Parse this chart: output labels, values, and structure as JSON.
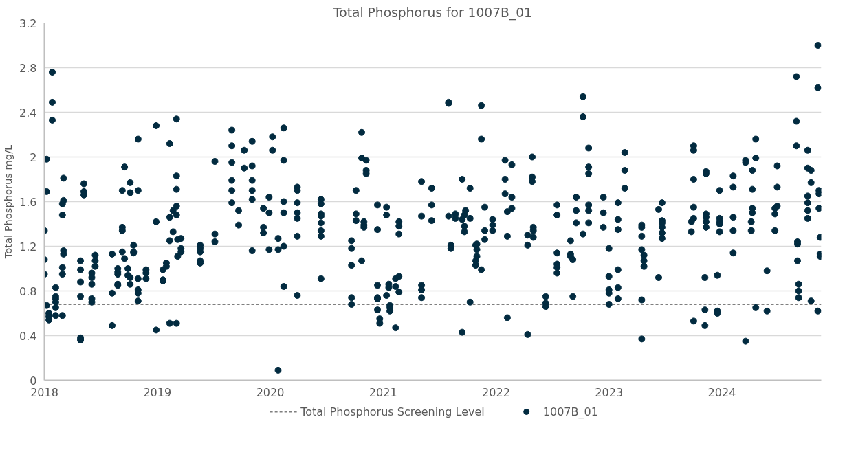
{
  "chart_data": {
    "type": "scatter",
    "title": "Total Phosphorus for 1007B_01",
    "ylabel": "Total Phosphorus mg/L",
    "xlim": [
      2018,
      2024.88
    ],
    "xticks": [
      2018,
      2019,
      2020,
      2021,
      2022,
      2023,
      2024
    ],
    "ylim": [
      0,
      3.2
    ],
    "yticks": [
      0,
      0.4,
      0.8,
      1.2,
      1.6,
      2,
      2.4,
      2.8,
      3.2
    ],
    "grid": "y",
    "legend": "bottom",
    "marker": "circle",
    "ref_lines": [
      {
        "axis": "y",
        "value": 0.68,
        "label": "Total Phosphorus Screening Level",
        "color": "#7f7f7f",
        "line_style": "dashed"
      }
    ],
    "series": [
      {
        "name": "1007B_01",
        "color": "#022b40",
        "x": [
          2018.0,
          2018.0,
          2018.0,
          2018.02,
          2018.02,
          2018.02,
          2018.04,
          2018.04,
          2018.04,
          2018.07,
          2018.07,
          2018.07,
          2018.1,
          2018.1,
          2018.1,
          2018.1,
          2018.1,
          2018.1,
          2018.16,
          2018.16,
          2018.16,
          2018.16,
          2018.16,
          2018.17,
          2018.17,
          2018.17,
          2018.17,
          2018.32,
          2018.32,
          2018.32,
          2018.32,
          2018.32,
          2018.32,
          2018.35,
          2018.35,
          2018.35,
          2018.42,
          2018.42,
          2018.42,
          2018.42,
          2018.42,
          2018.45,
          2018.45,
          2018.45,
          2018.6,
          2018.6,
          2018.6,
          2018.65,
          2018.65,
          2018.65,
          2018.65,
          2018.65,
          2018.69,
          2018.69,
          2018.69,
          2018.69,
          2018.71,
          2018.71,
          2018.74,
          2018.74,
          2018.76,
          2018.76,
          2018.76,
          2018.76,
          2018.79,
          2018.79,
          2018.79,
          2018.83,
          2018.83,
          2018.83,
          2018.83,
          2018.83,
          2018.83,
          2018.9,
          2018.9,
          2018.9,
          2018.99,
          2018.99,
          2018.99,
          2019.05,
          2019.05,
          2019.05,
          2019.08,
          2019.08,
          2019.11,
          2019.11,
          2019.11,
          2019.11,
          2019.14,
          2019.14,
          2019.17,
          2019.17,
          2019.17,
          2019.17,
          2019.17,
          2019.17,
          2019.18,
          2019.18,
          2019.21,
          2019.21,
          2019.21,
          2019.38,
          2019.38,
          2019.38,
          2019.38,
          2019.38,
          2019.51,
          2019.51,
          2019.51,
          2019.66,
          2019.66,
          2019.66,
          2019.66,
          2019.66,
          2019.66,
          2019.72,
          2019.72,
          2019.77,
          2019.77,
          2019.84,
          2019.84,
          2019.84,
          2019.84,
          2019.84,
          2019.84,
          2019.94,
          2019.94,
          2019.94,
          2019.99,
          2019.99,
          2019.99,
          2020.02,
          2020.02,
          2020.07,
          2020.07,
          2020.07,
          2020.12,
          2020.12,
          2020.12,
          2020.12,
          2020.12,
          2020.12,
          2020.24,
          2020.24,
          2020.24,
          2020.24,
          2020.24,
          2020.24,
          2020.24,
          2020.45,
          2020.45,
          2020.45,
          2020.45,
          2020.45,
          2020.45,
          2020.45,
          2020.45,
          2020.72,
          2020.72,
          2020.72,
          2020.72,
          2020.72,
          2020.76,
          2020.76,
          2020.76,
          2020.81,
          2020.81,
          2020.81,
          2020.83,
          2020.83,
          2020.83,
          2020.85,
          2020.85,
          2020.85,
          2020.95,
          2020.95,
          2020.95,
          2020.95,
          2020.95,
          2020.95,
          2020.97,
          2020.97,
          2021.03,
          2021.03,
          2021.03,
          2021.05,
          2021.05,
          2021.06,
          2021.06,
          2021.06,
          2021.11,
          2021.11,
          2021.11,
          2021.14,
          2021.14,
          2021.14,
          2021.14,
          2021.14,
          2021.34,
          2021.34,
          2021.34,
          2021.34,
          2021.34,
          2021.43,
          2021.43,
          2021.43,
          2021.58,
          2021.58,
          2021.58,
          2021.6,
          2021.6,
          2021.64,
          2021.64,
          2021.7,
          2021.7,
          2021.7,
          2021.72,
          2021.72,
          2021.72,
          2021.73,
          2021.77,
          2021.77,
          2021.77,
          2021.82,
          2021.82,
          2021.82,
          2021.83,
          2021.83,
          2021.83,
          2021.87,
          2021.87,
          2021.87,
          2021.9,
          2021.9,
          2021.9,
          2021.97,
          2021.97,
          2021.97,
          2022.08,
          2022.08,
          2022.08,
          2022.1,
          2022.1,
          2022.1,
          2022.14,
          2022.14,
          2022.14,
          2022.28,
          2022.28,
          2022.28,
          2022.32,
          2022.32,
          2022.32,
          2022.33,
          2022.33,
          2022.33,
          2022.44,
          2022.44,
          2022.44,
          2022.54,
          2022.54,
          2022.54,
          2022.54,
          2022.54,
          2022.54,
          2022.66,
          2022.66,
          2022.66,
          2022.68,
          2022.68,
          2022.71,
          2022.71,
          2022.71,
          2022.77,
          2022.77,
          2022.77,
          2022.82,
          2022.82,
          2022.82,
          2022.82,
          2022.82,
          2022.82,
          2022.95,
          2022.95,
          2022.95,
          2023.0,
          2023.0,
          2023.0,
          2023.0,
          2023.0,
          2023.08,
          2023.08,
          2023.08,
          2023.08,
          2023.08,
          2023.08,
          2023.14,
          2023.14,
          2023.14,
          2023.29,
          2023.29,
          2023.29,
          2023.29,
          2023.29,
          2023.29,
          2023.31,
          2023.31,
          2023.31,
          2023.44,
          2023.44,
          2023.47,
          2023.47,
          2023.47,
          2023.47,
          2023.47,
          2023.47,
          2023.73,
          2023.73,
          2023.75,
          2023.75,
          2023.75,
          2023.75,
          2023.75,
          2023.75,
          2023.85,
          2023.85,
          2023.85,
          2023.86,
          2023.86,
          2023.86,
          2023.86,
          2023.86,
          2023.86,
          2023.96,
          2023.96,
          2023.96,
          2023.98,
          2023.98,
          2023.98,
          2023.98,
          2023.98,
          2024.1,
          2024.1,
          2024.1,
          2024.1,
          2024.1,
          2024.21,
          2024.21,
          2024.21,
          2024.26,
          2024.26,
          2024.27,
          2024.27,
          2024.27,
          2024.27,
          2024.3,
          2024.3,
          2024.3,
          2024.4,
          2024.4,
          2024.47,
          2024.47,
          2024.47,
          2024.49,
          2024.49,
          2024.49,
          2024.66,
          2024.66,
          2024.66,
          2024.67,
          2024.67,
          2024.67,
          2024.68,
          2024.68,
          2024.68,
          2024.76,
          2024.76,
          2024.76,
          2024.76,
          2024.76,
          2024.76,
          2024.79,
          2024.79,
          2024.79,
          2024.85,
          2024.85,
          2024.85,
          2024.86,
          2024.86,
          2024.86,
          2024.87,
          2024.87,
          2024.87
        ],
        "values": [
          1.34,
          1.08,
          0.95,
          1.98,
          1.69,
          0.67,
          0.6,
          0.57,
          0.54,
          2.76,
          2.49,
          2.33,
          0.83,
          0.75,
          0.73,
          0.7,
          0.65,
          0.58,
          1.48,
          1.58,
          1.01,
          0.95,
          0.58,
          1.81,
          1.61,
          1.16,
          1.13,
          1.07,
          0.99,
          0.88,
          0.75,
          0.38,
          0.36,
          1.76,
          1.69,
          1.66,
          0.96,
          0.92,
          0.86,
          0.73,
          0.7,
          1.12,
          1.07,
          1.02,
          1.13,
          0.78,
          0.49,
          1.0,
          0.97,
          0.95,
          0.86,
          0.85,
          1.37,
          1.34,
          1.7,
          1.15,
          1.91,
          1.09,
          1.0,
          0.94,
          1.77,
          1.68,
          0.92,
          0.86,
          1.21,
          1.15,
          1.14,
          2.16,
          1.7,
          0.91,
          0.81,
          0.78,
          0.71,
          0.99,
          0.96,
          0.91,
          2.28,
          1.42,
          0.45,
          0.99,
          0.9,
          0.89,
          1.05,
          1.02,
          2.12,
          1.46,
          0.51,
          1.25,
          1.52,
          1.33,
          2.34,
          1.83,
          1.71,
          1.56,
          1.48,
          0.51,
          1.26,
          1.11,
          1.27,
          1.18,
          1.15,
          1.21,
          1.18,
          1.15,
          1.07,
          1.05,
          1.96,
          1.31,
          1.24,
          2.24,
          2.1,
          1.95,
          1.79,
          1.7,
          1.59,
          1.52,
          1.39,
          2.06,
          1.9,
          2.14,
          1.92,
          1.79,
          1.7,
          1.62,
          1.16,
          1.54,
          1.37,
          1.32,
          1.64,
          1.5,
          1.17,
          2.18,
          2.06,
          1.27,
          1.17,
          0.09,
          2.26,
          1.97,
          1.6,
          1.5,
          1.2,
          0.84,
          1.73,
          1.7,
          1.59,
          1.5,
          1.45,
          1.29,
          0.76,
          1.62,
          1.58,
          1.49,
          1.47,
          1.41,
          1.34,
          1.29,
          0.91,
          1.25,
          1.18,
          1.03,
          0.74,
          0.68,
          1.7,
          1.49,
          1.43,
          2.22,
          1.99,
          1.07,
          1.42,
          1.39,
          1.37,
          1.97,
          1.88,
          1.85,
          1.57,
          1.35,
          0.85,
          0.74,
          0.73,
          0.63,
          0.55,
          0.51,
          1.55,
          1.48,
          0.76,
          0.86,
          0.83,
          0.67,
          0.65,
          0.62,
          0.91,
          0.84,
          0.47,
          0.93,
          0.79,
          1.42,
          1.38,
          1.31,
          1.78,
          1.47,
          0.85,
          0.81,
          0.74,
          1.72,
          1.57,
          1.43,
          2.49,
          2.48,
          1.47,
          1.21,
          1.18,
          1.49,
          1.45,
          1.8,
          1.44,
          0.43,
          1.48,
          1.38,
          1.33,
          1.52,
          1.72,
          1.45,
          0.7,
          1.21,
          1.07,
          1.03,
          1.22,
          1.17,
          1.11,
          2.46,
          2.16,
          0.99,
          1.55,
          1.34,
          1.26,
          1.44,
          1.39,
          1.34,
          1.97,
          1.8,
          1.67,
          1.51,
          1.29,
          0.56,
          1.93,
          1.64,
          1.54,
          1.3,
          1.21,
          0.41,
          2.0,
          1.82,
          1.78,
          1.37,
          1.34,
          1.28,
          0.75,
          0.69,
          0.66,
          1.57,
          1.48,
          1.14,
          1.04,
          1.01,
          0.96,
          1.25,
          1.13,
          1.11,
          1.08,
          0.75,
          1.64,
          1.52,
          1.41,
          2.54,
          2.36,
          1.31,
          2.08,
          1.91,
          1.85,
          1.57,
          1.52,
          1.41,
          1.64,
          1.5,
          1.37,
          1.18,
          0.93,
          0.81,
          0.78,
          0.68,
          1.59,
          1.44,
          1.35,
          0.99,
          0.83,
          0.73,
          2.04,
          1.88,
          1.72,
          1.39,
          1.37,
          1.29,
          1.17,
          0.72,
          0.37,
          1.12,
          1.07,
          1.02,
          1.53,
          0.92,
          1.59,
          1.43,
          1.41,
          1.37,
          1.32,
          1.27,
          1.42,
          1.33,
          2.1,
          2.06,
          1.8,
          1.55,
          1.45,
          0.53,
          0.92,
          0.63,
          0.49,
          1.87,
          1.85,
          1.49,
          1.46,
          1.42,
          1.37,
          0.94,
          0.62,
          0.6,
          1.7,
          1.45,
          1.42,
          1.4,
          1.33,
          1.83,
          1.73,
          1.46,
          1.34,
          1.14,
          1.97,
          1.95,
          0.35,
          1.42,
          1.34,
          1.88,
          1.71,
          1.54,
          1.5,
          2.16,
          1.99,
          0.65,
          0.98,
          0.62,
          1.54,
          1.49,
          1.34,
          1.92,
          1.73,
          1.56,
          2.72,
          2.32,
          2.1,
          1.24,
          1.22,
          1.07,
          0.86,
          0.8,
          0.74,
          2.06,
          1.9,
          1.65,
          1.59,
          1.52,
          1.45,
          1.88,
          1.77,
          0.71,
          3.0,
          2.62,
          0.62,
          1.7,
          1.67,
          1.54,
          1.28,
          1.13,
          1.11
        ]
      }
    ]
  }
}
